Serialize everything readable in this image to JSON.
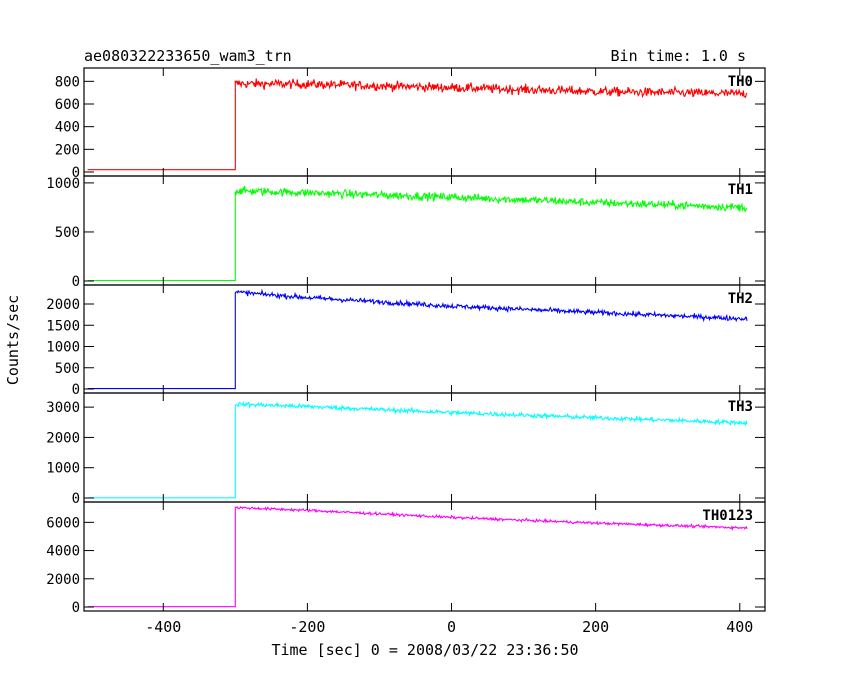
{
  "header": {
    "left_title": "ae080322233650_wam3_trn",
    "right_title": "Bin time: 1.0 s"
  },
  "axes": {
    "ylabel": "Counts/sec",
    "xlabel": "Time [sec] 0 = 2008/03/22 23:36:50"
  },
  "chart_data": {
    "type": "line",
    "title": "ae080322233650_wam3_trn",
    "subtitle": "Bin time: 1.0 s",
    "xlabel": "Time [sec] 0 = 2008/03/22 23:36:50",
    "ylabel": "Counts/sec",
    "xlim": [
      -510,
      435
    ],
    "x_ticks": [
      -400,
      -200,
      0,
      200,
      400
    ],
    "step_time": -300,
    "x_start": -505,
    "x_end": 410,
    "panels": [
      {
        "name": "TH0",
        "color": "#ff0000",
        "ylim": [
          0,
          900
        ],
        "yticks": [
          0,
          200,
          400,
          600,
          800
        ],
        "baseline": 20,
        "trend": [
          [
            -300,
            780
          ],
          [
            -200,
            775
          ],
          [
            0,
            745
          ],
          [
            200,
            710
          ],
          [
            410,
            690
          ]
        ],
        "noise": 40
      },
      {
        "name": "TH1",
        "color": "#00ff00",
        "ylim": [
          0,
          1050
        ],
        "yticks": [
          0,
          500,
          1000
        ],
        "baseline": 5,
        "trend": [
          [
            -300,
            920
          ],
          [
            -200,
            900
          ],
          [
            0,
            855
          ],
          [
            200,
            800
          ],
          [
            410,
            750
          ]
        ],
        "noise": 40
      },
      {
        "name": "TH2",
        "color": "#0000ff",
        "ylim": [
          0,
          2400
        ],
        "yticks": [
          0,
          500,
          1000,
          1500,
          2000
        ],
        "baseline": 10,
        "trend": [
          [
            -300,
            2280
          ],
          [
            -200,
            2150
          ],
          [
            0,
            1950
          ],
          [
            200,
            1800
          ],
          [
            410,
            1650
          ]
        ],
        "noise": 55
      },
      {
        "name": "TH3",
        "color": "#00ffff",
        "ylim": [
          0,
          3400
        ],
        "yticks": [
          0,
          1000,
          2000,
          3000
        ],
        "baseline": 5,
        "trend": [
          [
            -300,
            3100
          ],
          [
            -200,
            3020
          ],
          [
            0,
            2820
          ],
          [
            200,
            2650
          ],
          [
            410,
            2480
          ]
        ],
        "noise": 70
      },
      {
        "name": "TH0123",
        "color": "#ff00ff",
        "ylim": [
          0,
          7300
        ],
        "yticks": [
          0,
          2000,
          4000,
          6000
        ],
        "baseline": 20,
        "trend": [
          [
            -300,
            7050
          ],
          [
            -200,
            6850
          ],
          [
            0,
            6350
          ],
          [
            200,
            5950
          ],
          [
            410,
            5600
          ]
        ],
        "noise": 90
      }
    ],
    "grid": false
  }
}
